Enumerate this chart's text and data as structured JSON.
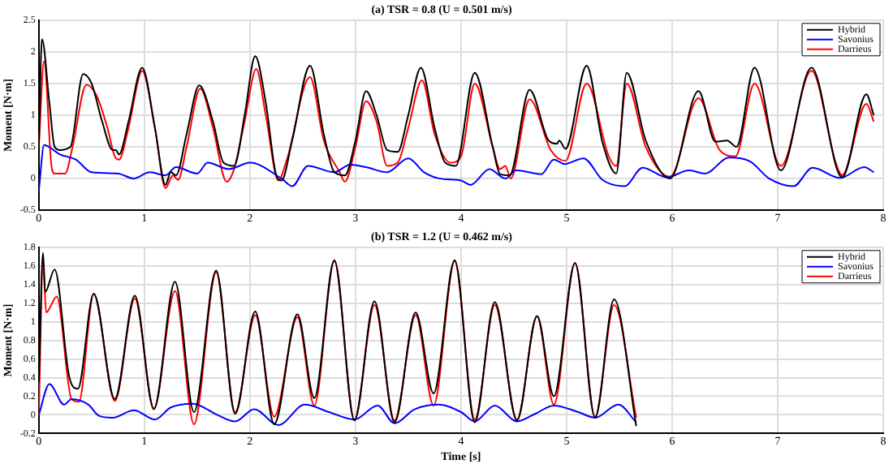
{
  "chart_data": [
    {
      "type": "line",
      "title": "(a) TSR = 0.8 (U = 0.501 m/s)",
      "ylabel": "Moment [N·m]",
      "xlim": [
        0,
        8
      ],
      "xticks": [
        0,
        1,
        2,
        3,
        4,
        5,
        6,
        7,
        8
      ],
      "ylim": [
        -0.5,
        2.5
      ],
      "yticks": [
        -0.5,
        0,
        0.5,
        1,
        1.5,
        2,
        2.5
      ],
      "grid": true,
      "legend": "top right",
      "series": [
        {
          "name": "Hybrid",
          "color": "#000000",
          "x": [
            0,
            0.03,
            0.1,
            0.15,
            0.2,
            0.3,
            0.42,
            0.5,
            0.6,
            0.7,
            0.73,
            0.76,
            0.85,
            0.98,
            1.1,
            1.2,
            1.25,
            1.3,
            1.4,
            1.52,
            1.65,
            1.75,
            1.85,
            1.95,
            2.05,
            2.15,
            2.25,
            2.3,
            2.4,
            2.57,
            2.7,
            2.8,
            2.9,
            3.0,
            3.1,
            3.2,
            3.3,
            3.4,
            3.5,
            3.62,
            3.75,
            3.85,
            3.95,
            4.13,
            4.3,
            4.37,
            4.46,
            4.65,
            4.83,
            4.91,
            4.93,
            4.99,
            5.19,
            5.34,
            5.47,
            5.57,
            5.75,
            5.98,
            6.25,
            6.41,
            6.52,
            6.61,
            6.78,
            7.03,
            7.32,
            7.61,
            7.84,
            7.91
          ],
          "values": [
            0.5,
            2.2,
            1.2,
            0.5,
            0.45,
            0.5,
            1.65,
            1.5,
            0.9,
            0.45,
            0.45,
            0.38,
            0.9,
            1.75,
            0.8,
            -0.1,
            0.1,
            0.05,
            0.7,
            1.47,
            0.9,
            0.25,
            0.2,
            1.0,
            1.93,
            1.2,
            0.05,
            -0.03,
            0.6,
            1.78,
            0.7,
            0.1,
            0.05,
            0.6,
            1.38,
            1.0,
            0.45,
            0.42,
            1.0,
            1.75,
            0.8,
            0.25,
            0.2,
            1.67,
            0.5,
            0.07,
            0.05,
            1.4,
            0.6,
            0.55,
            0.6,
            0.47,
            1.78,
            0.57,
            0.08,
            1.67,
            0.6,
            0.0,
            1.38,
            0.58,
            0.6,
            0.5,
            1.75,
            0.13,
            1.75,
            0.02,
            1.33,
            1.0
          ]
        },
        {
          "name": "Savonius",
          "color": "#0000ff",
          "x": [
            0,
            0.05,
            0.2,
            0.35,
            0.5,
            0.75,
            0.9,
            1.05,
            1.2,
            1.3,
            1.5,
            1.6,
            1.8,
            2.0,
            2.3,
            2.4,
            2.55,
            2.8,
            2.95,
            3.1,
            3.3,
            3.5,
            3.65,
            3.8,
            4.0,
            4.09,
            4.27,
            4.42,
            4.52,
            4.76,
            4.88,
            4.98,
            5.16,
            5.34,
            5.55,
            5.72,
            5.95,
            6.16,
            6.31,
            6.54,
            6.74,
            6.92,
            7.15,
            7.33,
            7.59,
            7.82,
            7.91
          ],
          "values": [
            -0.2,
            0.53,
            0.38,
            0.3,
            0.1,
            0.08,
            0.0,
            0.1,
            0.05,
            0.18,
            0.08,
            0.25,
            0.15,
            0.25,
            0.0,
            -0.12,
            0.2,
            0.1,
            0.22,
            0.18,
            0.1,
            0.32,
            0.1,
            0.0,
            -0.03,
            -0.1,
            0.15,
            0.0,
            0.13,
            0.07,
            0.3,
            0.23,
            0.32,
            -0.02,
            -0.12,
            0.17,
            0.02,
            0.13,
            0.08,
            0.33,
            0.27,
            0.0,
            -0.12,
            0.17,
            0.01,
            0.18,
            0.1
          ]
        },
        {
          "name": "Darrieus",
          "color": "#ff0000",
          "x": [
            0,
            0.05,
            0.12,
            0.15,
            0.25,
            0.32,
            0.45,
            0.55,
            0.65,
            0.72,
            0.76,
            0.85,
            0.98,
            1.1,
            1.2,
            1.27,
            1.32,
            1.4,
            1.53,
            1.65,
            1.78,
            1.85,
            1.95,
            2.06,
            2.15,
            2.27,
            2.35,
            2.57,
            2.7,
            2.85,
            2.9,
            3.0,
            3.1,
            3.2,
            3.3,
            3.4,
            3.5,
            3.63,
            3.75,
            3.9,
            4.0,
            4.13,
            4.3,
            4.37,
            4.42,
            4.47,
            4.65,
            4.85,
            4.99,
            5.19,
            5.4,
            5.47,
            5.57,
            5.75,
            5.98,
            6.25,
            6.45,
            6.6,
            6.78,
            7.03,
            7.32,
            7.55,
            7.61,
            7.84,
            7.91
          ],
          "values": [
            0.5,
            1.85,
            0.2,
            0.08,
            0.08,
            0.5,
            1.48,
            1.3,
            0.8,
            0.35,
            0.3,
            0.8,
            1.7,
            0.8,
            -0.15,
            0.05,
            -0.02,
            0.5,
            1.42,
            0.8,
            -0.05,
            0.15,
            0.9,
            1.73,
            1.0,
            -0.03,
            0.3,
            1.6,
            0.6,
            0.1,
            -0.05,
            0.5,
            1.22,
            0.9,
            0.2,
            0.25,
            0.8,
            1.55,
            0.7,
            0.25,
            0.35,
            1.5,
            0.5,
            0.15,
            0.2,
            0.0,
            1.25,
            0.45,
            0.28,
            1.5,
            0.35,
            0.2,
            1.5,
            0.5,
            0.03,
            1.27,
            0.45,
            0.35,
            1.5,
            0.2,
            1.7,
            0.25,
            0.05,
            1.18,
            0.9
          ]
        }
      ]
    },
    {
      "type": "line",
      "title": "(b) TSR = 1.2 (U = 0.462 m/s)",
      "xlabel": "Time [s]",
      "ylabel": "Moment [N·m]",
      "xlim": [
        0,
        8
      ],
      "xticks": [
        0,
        1,
        2,
        3,
        4,
        5,
        6,
        7,
        8
      ],
      "ylim": [
        -0.2,
        1.8
      ],
      "yticks": [
        -0.2,
        0,
        0.2,
        0.4,
        0.6,
        0.8,
        1,
        1.2,
        1.4,
        1.6,
        1.8
      ],
      "grid": true,
      "legend": "top right",
      "series": [
        {
          "name": "Hybrid",
          "color": "#000000",
          "x": [
            0,
            0.04,
            0.06,
            0.15,
            0.29,
            0.37,
            0.52,
            0.72,
            0.91,
            1.09,
            1.29,
            1.47,
            1.68,
            1.86,
            2.05,
            2.23,
            2.45,
            2.61,
            2.8,
            2.99,
            3.18,
            3.37,
            3.57,
            3.74,
            3.94,
            4.13,
            4.32,
            4.53,
            4.72,
            4.88,
            5.08,
            5.27,
            5.45,
            5.66
          ],
          "values": [
            0.35,
            1.74,
            1.32,
            1.56,
            0.4,
            0.28,
            1.3,
            0.17,
            1.28,
            0.06,
            1.43,
            0.03,
            1.55,
            0.01,
            1.11,
            -0.1,
            1.08,
            0.18,
            1.66,
            -0.06,
            1.22,
            -0.08,
            1.1,
            0.23,
            1.66,
            -0.08,
            1.21,
            -0.06,
            1.06,
            0.2,
            1.63,
            -0.03,
            1.24,
            -0.12
          ]
        },
        {
          "name": "Savonius",
          "color": "#0000ff",
          "x": [
            0,
            0.1,
            0.24,
            0.31,
            0.47,
            0.57,
            0.7,
            0.9,
            1.1,
            1.25,
            1.46,
            1.69,
            1.86,
            2.04,
            2.27,
            2.52,
            2.75,
            2.99,
            3.21,
            3.37,
            3.56,
            3.79,
            4.0,
            4.13,
            4.32,
            4.53,
            4.7,
            4.88,
            5.11,
            5.27,
            5.49,
            5.66
          ],
          "values": [
            0,
            0.33,
            0.11,
            0.17,
            0.11,
            -0.01,
            -0.03,
            0.05,
            -0.05,
            0.08,
            0.12,
            0,
            -0.07,
            0.06,
            -0.11,
            0.11,
            0.03,
            -0.05,
            0.1,
            -0.09,
            0.06,
            0.11,
            0.03,
            -0.07,
            0.1,
            -0.07,
            0.01,
            0.1,
            0.03,
            -0.03,
            0.11,
            -0.08
          ]
        },
        {
          "name": "Darrieus",
          "color": "#ff0000",
          "x": [
            0,
            0.04,
            0.07,
            0.17,
            0.31,
            0.38,
            0.52,
            0.72,
            0.91,
            1.09,
            1.29,
            1.47,
            1.68,
            1.86,
            2.05,
            2.23,
            2.45,
            2.61,
            2.8,
            2.99,
            3.18,
            3.37,
            3.57,
            3.74,
            3.94,
            4.13,
            4.32,
            4.53,
            4.72,
            4.88,
            5.08,
            5.27,
            5.45,
            5.66
          ],
          "values": [
            0,
            1.66,
            1.1,
            1.27,
            0.17,
            0.14,
            1.3,
            0.15,
            1.25,
            0.07,
            1.33,
            -0.1,
            1.53,
            0.03,
            1.07,
            -0.02,
            1.05,
            0.1,
            1.65,
            -0.05,
            1.18,
            -0.06,
            1.07,
            0.1,
            1.65,
            -0.05,
            1.18,
            -0.05,
            1.06,
            0.11,
            1.63,
            -0.02,
            1.18,
            -0.03
          ]
        }
      ]
    }
  ]
}
